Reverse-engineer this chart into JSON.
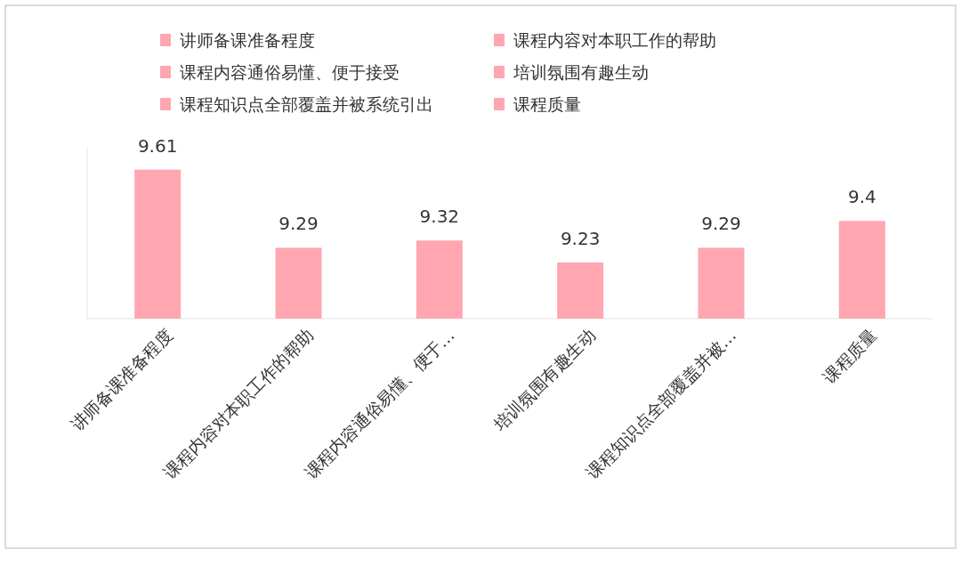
{
  "chart_data": {
    "type": "bar",
    "categories": [
      "讲师备课准备程度",
      "课程内容对本职工作的帮助",
      "课程内容通俗易懂、便于…",
      "培训氛围有趣生动",
      "课程知识点全部覆盖并被…",
      "课程质量"
    ],
    "series": [
      {
        "name": "讲师备课准备程度",
        "color": "#ffa6b1",
        "values": [
          9.61,
          null,
          null,
          null,
          null,
          null
        ]
      },
      {
        "name": "课程内容对本职工作的帮助",
        "color": "#ffa6b1",
        "values": [
          null,
          9.29,
          null,
          null,
          null,
          null
        ]
      },
      {
        "name": "课程内容通俗易懂、便于接受",
        "color": "#ffa6b1",
        "values": [
          null,
          null,
          9.32,
          null,
          null,
          null
        ]
      },
      {
        "name": "培训氛围有趣生动",
        "color": "#ffa6b1",
        "values": [
          null,
          null,
          null,
          9.23,
          null,
          null
        ]
      },
      {
        "name": "课程知识点全部覆盖并被系统引出",
        "color": "#ffa6b1",
        "values": [
          null,
          null,
          null,
          null,
          9.29,
          null
        ]
      },
      {
        "name": "课程质量",
        "color": "#ffa6b1",
        "values": [
          null,
          null,
          null,
          null,
          null,
          9.4
        ]
      }
    ],
    "ylim": [
      9,
      9.7
    ],
    "data_labels": true,
    "legend": "top",
    "grid": false
  }
}
